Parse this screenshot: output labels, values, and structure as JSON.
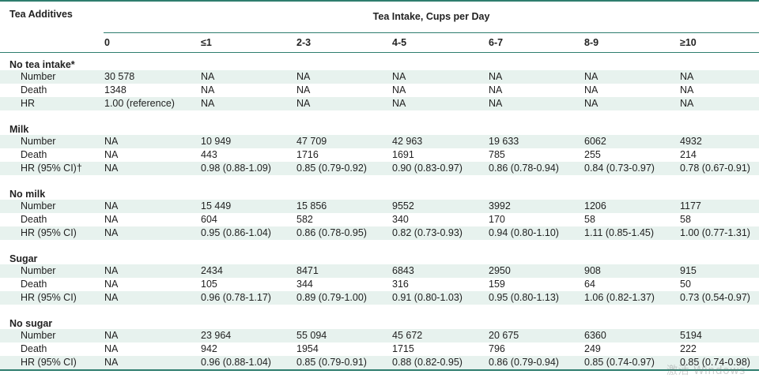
{
  "header": {
    "row_label_title": "Tea Additives",
    "span_title": "Tea Intake, Cups per Day",
    "columns": [
      "0",
      "≤1",
      "2-3",
      "4-5",
      "6-7",
      "8-9",
      "≥10"
    ]
  },
  "sections": [
    {
      "title": "No tea intake*",
      "rows": [
        {
          "label": "Number",
          "values": [
            "30 578",
            "NA",
            "NA",
            "NA",
            "NA",
            "NA",
            "NA"
          ],
          "shaded": true
        },
        {
          "label": "Death",
          "values": [
            "1348",
            "NA",
            "NA",
            "NA",
            "NA",
            "NA",
            "NA"
          ],
          "shaded": false
        },
        {
          "label": "HR",
          "values": [
            "1.00 (reference)",
            "NA",
            "NA",
            "NA",
            "NA",
            "NA",
            "NA"
          ],
          "shaded": true
        }
      ]
    },
    {
      "title": "Milk",
      "rows": [
        {
          "label": "Number",
          "values": [
            "NA",
            "10 949",
            "47 709",
            "42 963",
            "19 633",
            "6062",
            "4932"
          ],
          "shaded": true
        },
        {
          "label": "Death",
          "values": [
            "NA",
            "443",
            "1716",
            "1691",
            "785",
            "255",
            "214"
          ],
          "shaded": false
        },
        {
          "label": "HR (95% CI)†",
          "values": [
            "NA",
            "0.98 (0.88-1.09)",
            "0.85 (0.79-0.92)",
            "0.90 (0.83-0.97)",
            "0.86 (0.78-0.94)",
            "0.84 (0.73-0.97)",
            "0.78 (0.67-0.91)"
          ],
          "shaded": true
        }
      ]
    },
    {
      "title": "No milk",
      "rows": [
        {
          "label": "Number",
          "values": [
            "NA",
            "15 449",
            "15 856",
            "9552",
            "3992",
            "1206",
            "1177"
          ],
          "shaded": true
        },
        {
          "label": "Death",
          "values": [
            "NA",
            "604",
            "582",
            "340",
            "170",
            "58",
            "58"
          ],
          "shaded": false
        },
        {
          "label": "HR (95% CI)",
          "values": [
            "NA",
            "0.95 (0.86-1.04)",
            "0.86 (0.78-0.95)",
            "0.82 (0.73-0.93)",
            "0.94 (0.80-1.10)",
            "1.11 (0.85-1.45)",
            "1.00 (0.77-1.31)"
          ],
          "shaded": true
        }
      ]
    },
    {
      "title": "Sugar",
      "rows": [
        {
          "label": "Number",
          "values": [
            "NA",
            "2434",
            "8471",
            "6843",
            "2950",
            "908",
            "915"
          ],
          "shaded": true
        },
        {
          "label": "Death",
          "values": [
            "NA",
            "105",
            "344",
            "316",
            "159",
            "64",
            "50"
          ],
          "shaded": false
        },
        {
          "label": "HR (95% CI)",
          "values": [
            "NA",
            "0.96 (0.78-1.17)",
            "0.89 (0.79-1.00)",
            "0.91 (0.80-1.03)",
            "0.95 (0.80-1.13)",
            "1.06 (0.82-1.37)",
            "0.73 (0.54-0.97)"
          ],
          "shaded": true
        }
      ]
    },
    {
      "title": "No sugar",
      "rows": [
        {
          "label": "Number",
          "values": [
            "NA",
            "23 964",
            "55 094",
            "45 672",
            "20 675",
            "6360",
            "5194"
          ],
          "shaded": true
        },
        {
          "label": "Death",
          "values": [
            "NA",
            "942",
            "1954",
            "1715",
            "796",
            "249",
            "222"
          ],
          "shaded": false
        },
        {
          "label": "HR (95% CI)",
          "values": [
            "NA",
            "0.96 (0.88-1.04)",
            "0.85 (0.79-0.91)",
            "0.88 (0.82-0.95)",
            "0.86 (0.79-0.94)",
            "0.85 (0.74-0.97)",
            "0.85 (0.74-0.98)"
          ],
          "shaded": true
        }
      ]
    }
  ],
  "overlay": {
    "watermark": "激活 Windows"
  },
  "colors": {
    "rule": "#2e7d6e",
    "shade": "#e7f2ee"
  }
}
